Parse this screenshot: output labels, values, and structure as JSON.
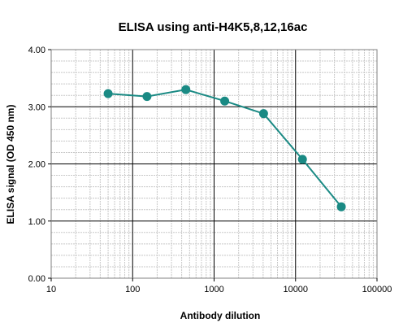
{
  "chart_data": {
    "type": "line",
    "title": "ELISA using anti-H4K5,8,12,16ac",
    "xlabel": "Antibody dilution",
    "ylabel": "ELISA signal (OD 450 nm)",
    "x_scale": "log",
    "xlim": [
      10,
      100000
    ],
    "ylim": [
      0,
      4
    ],
    "x_ticks": [
      10,
      100,
      1000,
      10000,
      100000
    ],
    "x_tick_labels": [
      "10",
      "100",
      "1000",
      "10000",
      "100000"
    ],
    "y_ticks": [
      0,
      1,
      2,
      3,
      4
    ],
    "y_tick_labels": [
      "0.00",
      "1.00",
      "2.00",
      "3.00",
      "4.00"
    ],
    "grid": true,
    "legend": "none",
    "series": [
      {
        "color": "#1a8a84",
        "x": [
          50,
          150,
          450,
          1350,
          4050,
          12150,
          36450
        ],
        "y": [
          3.23,
          3.18,
          3.3,
          3.1,
          2.88,
          2.08,
          1.25
        ]
      }
    ]
  }
}
